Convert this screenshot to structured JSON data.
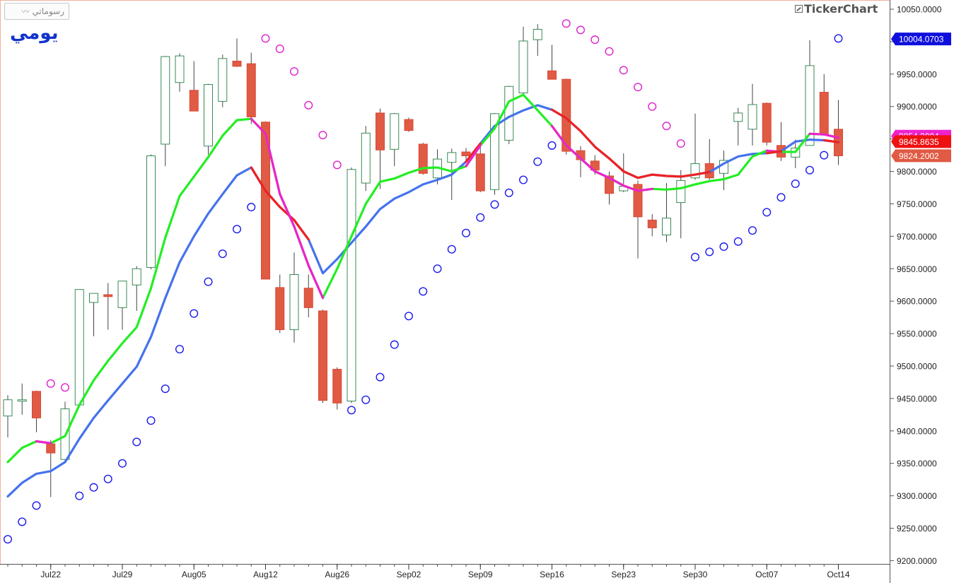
{
  "toolbar": {
    "draw_button_label": "رسوماتي",
    "draw_icon": "line-chart-icon"
  },
  "period_label": "يومي",
  "brand": {
    "name": "TickerChart",
    "icon": "chart-icon"
  },
  "chart_data": {
    "type": "candlestick",
    "y_axis": {
      "ticks": [
        10050,
        10000,
        9950,
        9900,
        9850,
        9800,
        9750,
        9700,
        9650,
        9600,
        9550,
        9500,
        9450,
        9400,
        9350,
        9300,
        9250,
        9200
      ],
      "tick_labels": [
        "10050.0000",
        "10000.0000",
        "9950.0000",
        "9900.0000",
        "9850.0000",
        "9800.0000",
        "9750.0000",
        "9700.0000",
        "9650.0000",
        "9600.0000",
        "9550.0000",
        "9500.0000",
        "9450.0000",
        "9400.0000",
        "9350.0000",
        "9300.0000",
        "9250.0000",
        "9200.0000"
      ],
      "range": [
        9195,
        10062
      ]
    },
    "x_axis": {
      "labels": [
        {
          "text": "Jul22",
          "index": 3
        },
        {
          "text": "Jul29",
          "index": 8
        },
        {
          "text": "Aug05",
          "index": 13
        },
        {
          "text": "Aug12",
          "index": 18
        },
        {
          "text": "Aug26",
          "index": 23
        },
        {
          "text": "Sep02",
          "index": 28
        },
        {
          "text": "Sep09",
          "index": 33
        },
        {
          "text": "Sep16",
          "index": 38
        },
        {
          "text": "Sep23",
          "index": 43
        },
        {
          "text": "Sep30",
          "index": 48
        },
        {
          "text": "Oct07",
          "index": 53
        },
        {
          "text": "Oct14",
          "index": 58
        }
      ],
      "count": 59
    },
    "candles": [
      {
        "o": 9423,
        "h": 9455,
        "l": 9390,
        "c": 9448
      },
      {
        "o": 9447,
        "h": 9473,
        "l": 9425,
        "c": 9448
      },
      {
        "o": 9461,
        "h": 9462,
        "l": 9398,
        "c": 9420
      },
      {
        "o": 9380,
        "h": 9386,
        "l": 9298,
        "c": 9366
      },
      {
        "o": 9356,
        "h": 9445,
        "l": 9352,
        "c": 9434
      },
      {
        "o": 9440,
        "h": 9618,
        "l": 9440,
        "c": 9618
      },
      {
        "o": 9598,
        "h": 9612,
        "l": 9546,
        "c": 9612
      },
      {
        "o": 9610,
        "h": 9628,
        "l": 9556,
        "c": 9607
      },
      {
        "o": 9590,
        "h": 9630,
        "l": 9556,
        "c": 9631
      },
      {
        "o": 9625,
        "h": 9654,
        "l": 9585,
        "c": 9650
      },
      {
        "o": 9652,
        "h": 9826,
        "l": 9649,
        "c": 9824
      },
      {
        "o": 9842,
        "h": 9978,
        "l": 9808,
        "c": 9977
      },
      {
        "o": 9937,
        "h": 9982,
        "l": 9923,
        "c": 9978
      },
      {
        "o": 9925,
        "h": 9970,
        "l": 9893,
        "c": 9893
      },
      {
        "o": 9839,
        "h": 9935,
        "l": 9826,
        "c": 9934
      },
      {
        "o": 9908,
        "h": 9980,
        "l": 9899,
        "c": 9974
      },
      {
        "o": 9970,
        "h": 10005,
        "l": 9961,
        "c": 9962
      },
      {
        "o": 9966,
        "h": 9983,
        "l": 9873,
        "c": 9884
      },
      {
        "o": 9876,
        "h": 9877,
        "l": 9634,
        "c": 9634
      },
      {
        "o": 9621,
        "h": 9641,
        "l": 9551,
        "c": 9556
      },
      {
        "o": 9556,
        "h": 9675,
        "l": 9536,
        "c": 9641
      },
      {
        "o": 9620,
        "h": 9641,
        "l": 9575,
        "c": 9590
      },
      {
        "o": 9585,
        "h": 9587,
        "l": 9443,
        "c": 9447
      },
      {
        "o": 9495,
        "h": 9498,
        "l": 9433,
        "c": 9443
      },
      {
        "o": 9446,
        "h": 9806,
        "l": 9443,
        "c": 9803
      },
      {
        "o": 9782,
        "h": 9870,
        "l": 9770,
        "c": 9859
      },
      {
        "o": 9890,
        "h": 9897,
        "l": 9773,
        "c": 9833
      },
      {
        "o": 9834,
        "h": 9890,
        "l": 9808,
        "c": 9889
      },
      {
        "o": 9880,
        "h": 9883,
        "l": 9861,
        "c": 9863
      },
      {
        "o": 9842,
        "h": 9844,
        "l": 9795,
        "c": 9797
      },
      {
        "o": 9790,
        "h": 9834,
        "l": 9780,
        "c": 9819
      },
      {
        "o": 9814,
        "h": 9835,
        "l": 9756,
        "c": 9829
      },
      {
        "o": 9830,
        "h": 9836,
        "l": 9817,
        "c": 9824
      },
      {
        "o": 9827,
        "h": 9840,
        "l": 9768,
        "c": 9770
      },
      {
        "o": 9772,
        "h": 9890,
        "l": 9764,
        "c": 9889
      },
      {
        "o": 9848,
        "h": 9932,
        "l": 9842,
        "c": 9931
      },
      {
        "o": 9921,
        "h": 10023,
        "l": 9919,
        "c": 10001
      },
      {
        "o": 10003,
        "h": 10027,
        "l": 9978,
        "c": 10019
      },
      {
        "o": 9955,
        "h": 9995,
        "l": 9943,
        "c": 9942
      },
      {
        "o": 9942,
        "h": 9943,
        "l": 9826,
        "c": 9831
      },
      {
        "o": 9832,
        "h": 9839,
        "l": 9791,
        "c": 9818
      },
      {
        "o": 9816,
        "h": 9825,
        "l": 9795,
        "c": 9802
      },
      {
        "o": 9793,
        "h": 9800,
        "l": 9749,
        "c": 9766
      },
      {
        "o": 9770,
        "h": 9828,
        "l": 9768,
        "c": 9777
      },
      {
        "o": 9780,
        "h": 9786,
        "l": 9666,
        "c": 9730
      },
      {
        "o": 9725,
        "h": 9734,
        "l": 9700,
        "c": 9713
      },
      {
        "o": 9702,
        "h": 9782,
        "l": 9691,
        "c": 9728
      },
      {
        "o": 9752,
        "h": 9802,
        "l": 9697,
        "c": 9786
      },
      {
        "o": 9790,
        "h": 9889,
        "l": 9787,
        "c": 9812
      },
      {
        "o": 9812,
        "h": 9850,
        "l": 9787,
        "c": 9790
      },
      {
        "o": 9797,
        "h": 9832,
        "l": 9771,
        "c": 9817
      },
      {
        "o": 9877,
        "h": 9898,
        "l": 9840,
        "c": 9890
      },
      {
        "o": 9865,
        "h": 9935,
        "l": 9840,
        "c": 9903
      },
      {
        "o": 9905,
        "h": 9906,
        "l": 9840,
        "c": 9845
      },
      {
        "o": 9840,
        "h": 9876,
        "l": 9816,
        "c": 9822
      },
      {
        "o": 9822,
        "h": 9849,
        "l": 9805,
        "c": 9836
      },
      {
        "o": 9840,
        "h": 10002,
        "l": 9840,
        "c": 9963
      },
      {
        "o": 9922,
        "h": 9950,
        "l": 9855,
        "c": 9856
      },
      {
        "o": 9865,
        "h": 9910,
        "l": 9810,
        "c": 9824
      }
    ],
    "series": [
      {
        "name": "",
        "color": "#22ee22",
        "values": [
          9352,
          9374,
          9384,
          9381,
          9392,
          9440,
          9478,
          9508,
          9535,
          9560,
          9620,
          9698,
          9762,
          9792,
          9822,
          9855,
          9879,
          9881,
          9858,
          9765,
          9715,
          9655,
          9605,
          9650,
          9700,
          9750,
          9784,
          9789,
          9798,
          9805,
          9806,
          9800,
          9808,
          9840,
          9866,
          9908,
          9918,
          9894,
          9870,
          9840,
          9820,
          9800,
          9790,
          9778,
          9770,
          9773,
          9772,
          9774,
          9780,
          9785,
          9788,
          9795,
          9823,
          9832,
          9830,
          9830,
          9858,
          9857,
          9852
        ]
      },
      {
        "name": "",
        "color": "#4472ee",
        "values": [
          9299,
          9320,
          9334,
          9338,
          9352,
          9388,
          9420,
          9447,
          9473,
          9499,
          9545,
          9605,
          9660,
          9700,
          9735,
          9765,
          9794,
          9806,
          9770,
          9745,
          9725,
          9695,
          9643,
          9665,
          9690,
          9715,
          9742,
          9758,
          9768,
          9780,
          9787,
          9795,
          9815,
          9843,
          9870,
          9884,
          9894,
          9902,
          9895,
          9882,
          9862,
          9838,
          9820,
          9800,
          9790,
          9795,
          9793,
          9792,
          9795,
          9799,
          9812,
          9823,
          9827,
          9828,
          9831,
          9846,
          9849,
          9848,
          9845
        ]
      }
    ],
    "signal_segments": [
      {
        "color": "#ee22cc",
        "from": 2,
        "to": 3,
        "on": "fast"
      },
      {
        "color": "#ee2222",
        "from": 17,
        "to": 21,
        "on": "slow"
      },
      {
        "color": "#ee22cc",
        "from": 17,
        "to": 22,
        "on": "fast"
      },
      {
        "color": "#ee2222",
        "from": 32,
        "to": 33,
        "on": "slow"
      },
      {
        "color": "#ee22cc",
        "from": 32,
        "to": 33,
        "on": "fast"
      },
      {
        "color": "#ee2222",
        "from": 38,
        "to": 45,
        "on": "slow"
      },
      {
        "color": "#ee22cc",
        "from": 38,
        "to": 45,
        "on": "fast"
      },
      {
        "color": "#ee2222",
        "from": 45,
        "to": 49,
        "on": "slow"
      },
      {
        "color": "#ee22cc",
        "from": 53,
        "to": 54,
        "on": "fast"
      },
      {
        "color": "#ee2222",
        "from": 53,
        "to": 54,
        "on": "slow"
      },
      {
        "color": "#ee22cc",
        "from": 56,
        "to": 58,
        "on": "fast"
      },
      {
        "color": "#ee2222",
        "from": 57,
        "to": 58,
        "on": "slow"
      }
    ],
    "sar": {
      "values": [
        9233,
        9260,
        9285,
        9473,
        9467,
        9300,
        9313,
        9326,
        9350,
        9383,
        9416,
        9465,
        9526,
        9581,
        9630,
        9673,
        9711,
        9745,
        10005,
        9989,
        9954,
        9902,
        9856,
        9810,
        9432,
        9448,
        9483,
        9533,
        9577,
        9615,
        9650,
        9680,
        9705,
        9729,
        9749,
        9767,
        9787,
        9815,
        9840,
        10028,
        10018,
        10003,
        9985,
        9956,
        9930,
        9900,
        9870,
        9843,
        9668,
        9676,
        9684,
        9692,
        9709,
        9737,
        9760,
        9781,
        9802,
        9825,
        10005
      ],
      "colors": [
        "#1a1aee",
        "#1a1aee",
        "#1a1aee",
        "#dd22cc",
        "#dd22cc",
        "#1a1aee",
        "#1a1aee",
        "#1a1aee",
        "#1a1aee",
        "#1a1aee",
        "#1a1aee",
        "#1a1aee",
        "#1a1aee",
        "#1a1aee",
        "#1a1aee",
        "#1a1aee",
        "#1a1aee",
        "#1a1aee",
        "#dd22cc",
        "#dd22cc",
        "#dd22cc",
        "#dd22cc",
        "#dd22cc",
        "#dd22cc",
        "#1a1aee",
        "#1a1aee",
        "#1a1aee",
        "#1a1aee",
        "#1a1aee",
        "#1a1aee",
        "#1a1aee",
        "#1a1aee",
        "#1a1aee",
        "#1a1aee",
        "#1a1aee",
        "#1a1aee",
        "#1a1aee",
        "#1a1aee",
        "#1a1aee",
        "#dd22cc",
        "#dd22cc",
        "#dd22cc",
        "#dd22cc",
        "#dd22cc",
        "#dd22cc",
        "#dd22cc",
        "#dd22cc",
        "#dd22cc",
        "#1a1aee",
        "#1a1aee",
        "#1a1aee",
        "#1a1aee",
        "#1a1aee",
        "#1a1aee",
        "#1a1aee",
        "#1a1aee",
        "#1a1aee",
        "#1a1aee",
        "#1a1aee"
      ]
    },
    "price_tags": [
      {
        "value": 10004.0703,
        "text": "10004.0703",
        "bg": "#1010dd",
        "fg": "#ffffff"
      },
      {
        "value": 9854.3004,
        "text": "9854.3004",
        "bg": "#ee22cc",
        "fg": "#ffffff"
      },
      {
        "value": 9845.8635,
        "text": "9845.8635",
        "bg": "#ee1111",
        "fg": "#ffffff"
      },
      {
        "value": 9824.2002,
        "text": "9824.2002",
        "bg": "#e05a44",
        "fg": "#ffffff"
      }
    ],
    "colors": {
      "up_body": "#ffffff",
      "up_border": "#3a8a55",
      "down_body": "#e05a44",
      "down_border": "#d84a35",
      "neutral_body": "#4a9a5a",
      "grid": "#000000",
      "axis": "#333333"
    }
  }
}
